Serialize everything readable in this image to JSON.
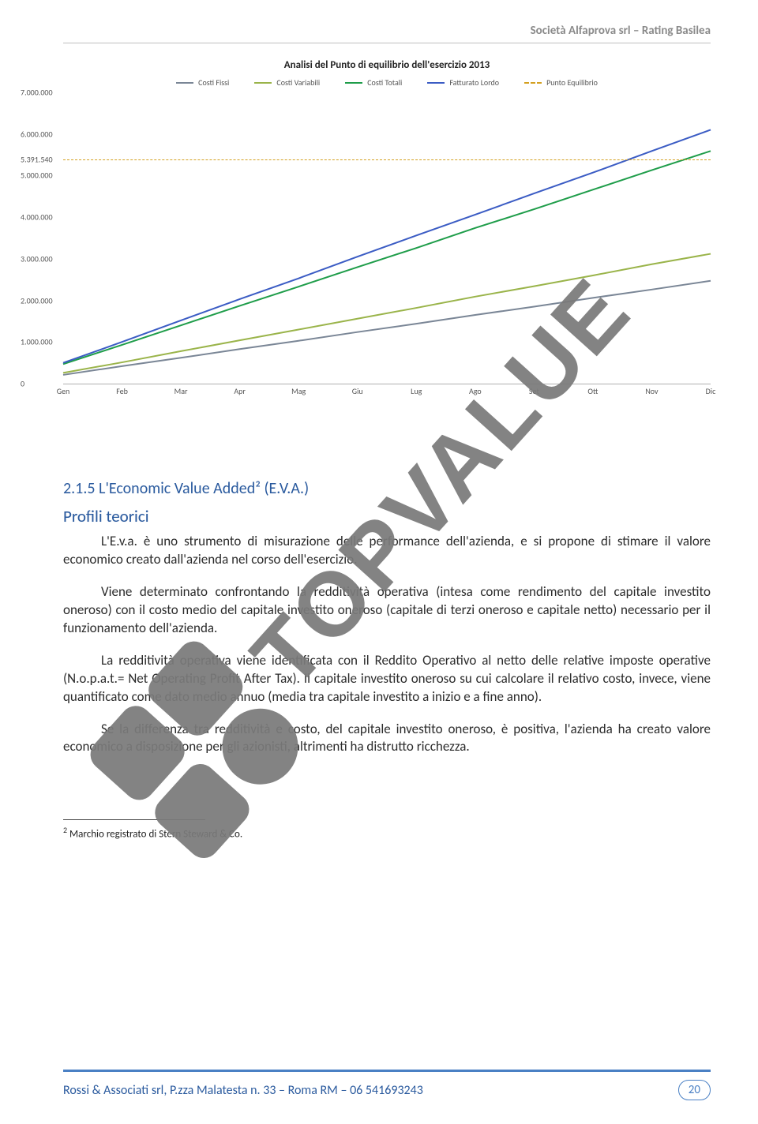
{
  "header": {
    "company": "Società Alfaprova srl – Rating Basilea"
  },
  "chart": {
    "type": "line",
    "title": "Analisi del Punto di equilibrio dell'esercizio 2013",
    "background_color": "#ffffff",
    "legend": [
      {
        "label": "Costi Fissi",
        "color": "#7a8696",
        "dash": false
      },
      {
        "label": "Costi Variabili",
        "color": "#9ab44a",
        "dash": false
      },
      {
        "label": "Costi Totali",
        "color": "#1f9d4a",
        "dash": false
      },
      {
        "label": "Fatturato Lordo",
        "color": "#3b5cc4",
        "dash": false
      },
      {
        "label": "Punto Equilibrio",
        "color": "#d4a020",
        "dash": true
      }
    ],
    "x_categories": [
      "Gen",
      "Feb",
      "Mar",
      "Apr",
      "Mag",
      "Giu",
      "Lug",
      "Ago",
      "Set",
      "Ott",
      "Nov",
      "Dic"
    ],
    "y_ticks": [
      "0",
      "1.000.000",
      "2.000.000",
      "3.000.000",
      "4.000.000",
      "5.000.000",
      "5.391.540",
      "6.000.000",
      "7.000.000"
    ],
    "ylim": [
      0,
      7000000
    ],
    "punto_equilibrio_value": 5391540,
    "label_fontsize": 10,
    "title_fontsize": 13,
    "series": {
      "costi_fissi": {
        "color": "#7a8696",
        "width": 2,
        "values": [
          210000,
          420000,
          620000,
          830000,
          1030000,
          1240000,
          1440000,
          1650000,
          1850000,
          2060000,
          2260000,
          2470000
        ]
      },
      "costi_variabili": {
        "color": "#9ab44a",
        "width": 2,
        "values": [
          260000,
          510000,
          780000,
          1040000,
          1300000,
          1560000,
          1820000,
          2090000,
          2340000,
          2600000,
          2870000,
          3120000
        ]
      },
      "costi_totali": {
        "color": "#1f9d4a",
        "width": 2,
        "values": [
          470000,
          930000,
          1400000,
          1870000,
          2330000,
          2800000,
          3260000,
          3740000,
          4190000,
          4660000,
          5130000,
          5590000
        ]
      },
      "fatturato_lordo": {
        "color": "#3b5cc4",
        "width": 2,
        "values": [
          500000,
          1000000,
          1520000,
          2030000,
          2530000,
          3050000,
          3560000,
          4060000,
          4570000,
          5070000,
          5590000,
          6100000
        ]
      }
    }
  },
  "section": {
    "heading": "2.1.5 L'Economic Value Added² (E.V.A.)",
    "profili_label": "Profili teorici",
    "p1": "L'E.v.a. è uno strumento di misurazione delle performance dell'azienda, e si propone di stimare il valore economico creato dall'azienda nel corso dell'esercizio.",
    "p2": "Viene determinato confrontando la redditività operativa (intesa come rendimento del capitale investito oneroso) con il costo medio del capitale investito oneroso (capitale di terzi oneroso e capitale netto) necessario per il funzionamento dell'azienda.",
    "p3": "La redditività operativa viene identificata con il Reddito Operativo al netto delle relative imposte operative (N.o.p.a.t.= Net Operating Profit After Tax). Il capitale investito oneroso su cui calcolare il relativo costo, invece, viene quantificato come dato medio annuo (media tra capitale investito a inizio e a fine anno).",
    "p4": "Se la differenza tra redditività e costo, del capitale investito oneroso, è positiva, l'azienda ha creato valore economico a disposizione per gli azionisti, altrimenti ha distrutto ricchezza."
  },
  "footnote": {
    "marker": "2",
    "text": "Marchio registrato di Stern Steward & Co."
  },
  "footer": {
    "text": "Rossi & Associati srl, P.zza Malatesta n. 33 – Roma RM – 06 541693243",
    "page": "20"
  },
  "watermark": {
    "text": "TOPVALUE",
    "color": "#7a7a7a"
  }
}
